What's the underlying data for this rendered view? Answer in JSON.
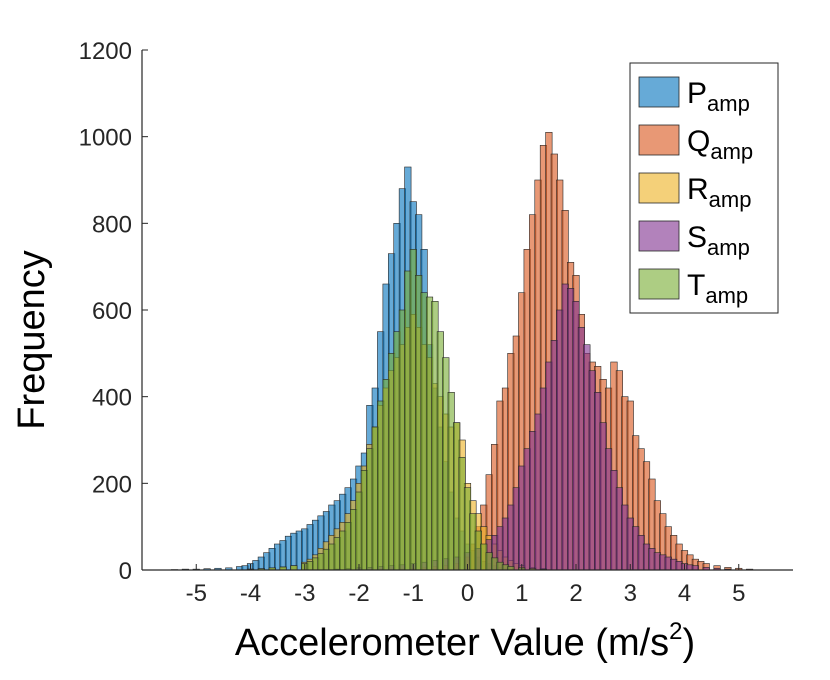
{
  "chart_data": {
    "type": "bar",
    "subtype": "overlapping-histogram",
    "title": "",
    "xlabel": "Accelerometer Value (m/s",
    "xlabel_sup": "2",
    "xlabel_close": ")",
    "ylabel": "Frequency",
    "xlim": [
      -6,
      6
    ],
    "ylim": [
      0,
      1200
    ],
    "bin_width": 0.12,
    "xticks": [
      -5,
      -4,
      -3,
      -2,
      -1,
      0,
      1,
      2,
      3,
      4,
      5
    ],
    "yticks": [
      0,
      200,
      400,
      600,
      800,
      1000,
      1200
    ],
    "grid": false,
    "legend_position": "top-right",
    "bar_opacity": 0.6,
    "series": [
      {
        "base": "P",
        "sub": "amp",
        "color": "#0072BD",
        "bins": [
          [
            -5.4,
            1
          ],
          [
            -5.2,
            2
          ],
          [
            -5.0,
            2
          ],
          [
            -4.8,
            3
          ],
          [
            -4.6,
            4
          ],
          [
            -4.4,
            5
          ],
          [
            -4.2,
            8
          ],
          [
            -4.1,
            10
          ],
          [
            -4.0,
            15
          ],
          [
            -3.9,
            22
          ],
          [
            -3.8,
            30
          ],
          [
            -3.7,
            40
          ],
          [
            -3.6,
            50
          ],
          [
            -3.5,
            60
          ],
          [
            -3.4,
            68
          ],
          [
            -3.3,
            78
          ],
          [
            -3.2,
            85
          ],
          [
            -3.1,
            90
          ],
          [
            -3.0,
            95
          ],
          [
            -2.9,
            105
          ],
          [
            -2.8,
            115
          ],
          [
            -2.7,
            125
          ],
          [
            -2.6,
            135
          ],
          [
            -2.5,
            150
          ],
          [
            -2.4,
            160
          ],
          [
            -2.3,
            175
          ],
          [
            -2.2,
            190
          ],
          [
            -2.1,
            210
          ],
          [
            -2.0,
            240
          ],
          [
            -1.9,
            270
          ],
          [
            -1.8,
            380
          ],
          [
            -1.7,
            420
          ],
          [
            -1.6,
            550
          ],
          [
            -1.5,
            660
          ],
          [
            -1.4,
            730
          ],
          [
            -1.3,
            800
          ],
          [
            -1.2,
            880
          ],
          [
            -1.1,
            930
          ],
          [
            -1.0,
            850
          ],
          [
            -0.9,
            820
          ],
          [
            -0.8,
            740
          ],
          [
            -0.7,
            520
          ],
          [
            -0.6,
            420
          ],
          [
            -0.5,
            330
          ],
          [
            -0.4,
            250
          ],
          [
            -0.3,
            180
          ],
          [
            -0.2,
            120
          ],
          [
            -0.1,
            90
          ],
          [
            0.0,
            60
          ],
          [
            0.1,
            45
          ],
          [
            0.2,
            30
          ],
          [
            0.3,
            20
          ],
          [
            0.4,
            15
          ],
          [
            0.5,
            10
          ],
          [
            0.6,
            6
          ],
          [
            0.7,
            4
          ],
          [
            0.8,
            2
          ]
        ]
      },
      {
        "base": "Q",
        "sub": "amp",
        "color": "#D95319",
        "bins": [
          [
            -1.2,
            2
          ],
          [
            -1.0,
            3
          ],
          [
            -0.8,
            5
          ],
          [
            -0.6,
            8
          ],
          [
            -0.4,
            10
          ],
          [
            -0.2,
            15
          ],
          [
            0.0,
            30
          ],
          [
            0.1,
            60
          ],
          [
            0.2,
            100
          ],
          [
            0.3,
            150
          ],
          [
            0.4,
            220
          ],
          [
            0.5,
            290
          ],
          [
            0.6,
            390
          ],
          [
            0.7,
            420
          ],
          [
            0.8,
            500
          ],
          [
            0.9,
            540
          ],
          [
            1.0,
            640
          ],
          [
            1.1,
            740
          ],
          [
            1.2,
            820
          ],
          [
            1.3,
            900
          ],
          [
            1.4,
            980
          ],
          [
            1.5,
            1010
          ],
          [
            1.6,
            960
          ],
          [
            1.7,
            900
          ],
          [
            1.8,
            830
          ],
          [
            1.9,
            710
          ],
          [
            2.0,
            680
          ],
          [
            2.1,
            590
          ],
          [
            2.2,
            500
          ],
          [
            2.3,
            480
          ],
          [
            2.4,
            470
          ],
          [
            2.5,
            440
          ],
          [
            2.6,
            420
          ],
          [
            2.7,
            480
          ],
          [
            2.8,
            460
          ],
          [
            2.9,
            400
          ],
          [
            3.0,
            390
          ],
          [
            3.1,
            310
          ],
          [
            3.2,
            280
          ],
          [
            3.3,
            250
          ],
          [
            3.4,
            210
          ],
          [
            3.5,
            160
          ],
          [
            3.6,
            130
          ],
          [
            3.7,
            100
          ],
          [
            3.8,
            80
          ],
          [
            3.9,
            60
          ],
          [
            4.0,
            45
          ],
          [
            4.1,
            35
          ],
          [
            4.2,
            25
          ],
          [
            4.3,
            20
          ],
          [
            4.4,
            15
          ],
          [
            4.6,
            10
          ],
          [
            4.8,
            6
          ],
          [
            5.0,
            4
          ],
          [
            5.2,
            2
          ]
        ]
      },
      {
        "base": "R",
        "sub": "amp",
        "color": "#EDB120",
        "bins": [
          [
            -4.0,
            2
          ],
          [
            -3.8,
            3
          ],
          [
            -3.6,
            5
          ],
          [
            -3.4,
            7
          ],
          [
            -3.2,
            10
          ],
          [
            -3.0,
            18
          ],
          [
            -2.9,
            25
          ],
          [
            -2.8,
            35
          ],
          [
            -2.7,
            50
          ],
          [
            -2.6,
            65
          ],
          [
            -2.5,
            80
          ],
          [
            -2.4,
            95
          ],
          [
            -2.3,
            110
          ],
          [
            -2.2,
            130
          ],
          [
            -2.1,
            160
          ],
          [
            -2.0,
            200
          ],
          [
            -1.9,
            240
          ],
          [
            -1.8,
            290
          ],
          [
            -1.7,
            330
          ],
          [
            -1.6,
            380
          ],
          [
            -1.5,
            420
          ],
          [
            -1.4,
            460
          ],
          [
            -1.3,
            490
          ],
          [
            -1.2,
            520
          ],
          [
            -1.1,
            560
          ],
          [
            -1.0,
            590
          ],
          [
            -0.9,
            560
          ],
          [
            -0.8,
            520
          ],
          [
            -0.7,
            490
          ],
          [
            -0.6,
            430
          ],
          [
            -0.5,
            400
          ],
          [
            -0.4,
            360
          ],
          [
            -0.3,
            330
          ],
          [
            -0.2,
            340
          ],
          [
            -0.1,
            300
          ],
          [
            0.0,
            200
          ],
          [
            0.1,
            160
          ],
          [
            0.2,
            130
          ],
          [
            0.3,
            100
          ],
          [
            0.4,
            80
          ],
          [
            0.5,
            60
          ],
          [
            0.6,
            45
          ],
          [
            0.7,
            30
          ],
          [
            0.8,
            22
          ],
          [
            0.9,
            15
          ],
          [
            1.0,
            10
          ],
          [
            1.2,
            6
          ],
          [
            1.4,
            3
          ]
        ]
      },
      {
        "base": "S",
        "sub": "amp",
        "color": "#7E2F8E",
        "bins": [
          [
            -2.4,
            2
          ],
          [
            -2.2,
            3
          ],
          [
            -2.0,
            5
          ],
          [
            -1.8,
            6
          ],
          [
            -1.6,
            8
          ],
          [
            -1.4,
            10
          ],
          [
            -1.2,
            12
          ],
          [
            -1.0,
            15
          ],
          [
            -0.8,
            18
          ],
          [
            -0.6,
            22
          ],
          [
            -0.4,
            26
          ],
          [
            -0.2,
            30
          ],
          [
            0.0,
            40
          ],
          [
            0.2,
            50
          ],
          [
            0.4,
            70
          ],
          [
            0.5,
            80
          ],
          [
            0.6,
            100
          ],
          [
            0.7,
            120
          ],
          [
            0.8,
            150
          ],
          [
            0.9,
            190
          ],
          [
            1.0,
            240
          ],
          [
            1.1,
            280
          ],
          [
            1.2,
            320
          ],
          [
            1.3,
            360
          ],
          [
            1.4,
            420
          ],
          [
            1.5,
            480
          ],
          [
            1.6,
            530
          ],
          [
            1.7,
            600
          ],
          [
            1.8,
            660
          ],
          [
            1.9,
            650
          ],
          [
            2.0,
            620
          ],
          [
            2.1,
            560
          ],
          [
            2.2,
            520
          ],
          [
            2.3,
            460
          ],
          [
            2.4,
            410
          ],
          [
            2.5,
            340
          ],
          [
            2.6,
            280
          ],
          [
            2.7,
            230
          ],
          [
            2.8,
            190
          ],
          [
            2.9,
            150
          ],
          [
            3.0,
            120
          ],
          [
            3.1,
            100
          ],
          [
            3.2,
            80
          ],
          [
            3.3,
            60
          ],
          [
            3.4,
            50
          ],
          [
            3.5,
            40
          ],
          [
            3.6,
            35
          ],
          [
            3.7,
            30
          ],
          [
            3.8,
            25
          ],
          [
            3.9,
            20
          ],
          [
            4.0,
            15
          ],
          [
            4.1,
            12
          ],
          [
            4.2,
            10
          ],
          [
            4.4,
            6
          ],
          [
            4.6,
            4
          ],
          [
            4.8,
            2
          ]
        ]
      },
      {
        "base": "T",
        "sub": "amp",
        "color": "#77AC30",
        "bins": [
          [
            -4.0,
            2
          ],
          [
            -3.8,
            3
          ],
          [
            -3.6,
            5
          ],
          [
            -3.4,
            7
          ],
          [
            -3.2,
            10
          ],
          [
            -3.0,
            15
          ],
          [
            -2.9,
            20
          ],
          [
            -2.8,
            28
          ],
          [
            -2.7,
            38
          ],
          [
            -2.6,
            48
          ],
          [
            -2.5,
            60
          ],
          [
            -2.4,
            75
          ],
          [
            -2.3,
            90
          ],
          [
            -2.2,
            110
          ],
          [
            -2.1,
            140
          ],
          [
            -2.0,
            180
          ],
          [
            -1.9,
            230
          ],
          [
            -1.8,
            280
          ],
          [
            -1.7,
            330
          ],
          [
            -1.6,
            390
          ],
          [
            -1.5,
            440
          ],
          [
            -1.4,
            500
          ],
          [
            -1.3,
            550
          ],
          [
            -1.2,
            600
          ],
          [
            -1.1,
            690
          ],
          [
            -1.0,
            740
          ],
          [
            -0.9,
            680
          ],
          [
            -0.8,
            640
          ],
          [
            -0.7,
            630
          ],
          [
            -0.6,
            620
          ],
          [
            -0.5,
            550
          ],
          [
            -0.4,
            490
          ],
          [
            -0.3,
            410
          ],
          [
            -0.2,
            340
          ],
          [
            -0.1,
            260
          ],
          [
            0.0,
            190
          ],
          [
            0.1,
            130
          ],
          [
            0.2,
            90
          ],
          [
            0.3,
            60
          ],
          [
            0.4,
            40
          ],
          [
            0.5,
            28
          ],
          [
            0.6,
            18
          ],
          [
            0.7,
            12
          ],
          [
            0.8,
            8
          ],
          [
            1.0,
            5
          ],
          [
            1.2,
            3
          ],
          [
            1.4,
            2
          ]
        ]
      }
    ]
  }
}
